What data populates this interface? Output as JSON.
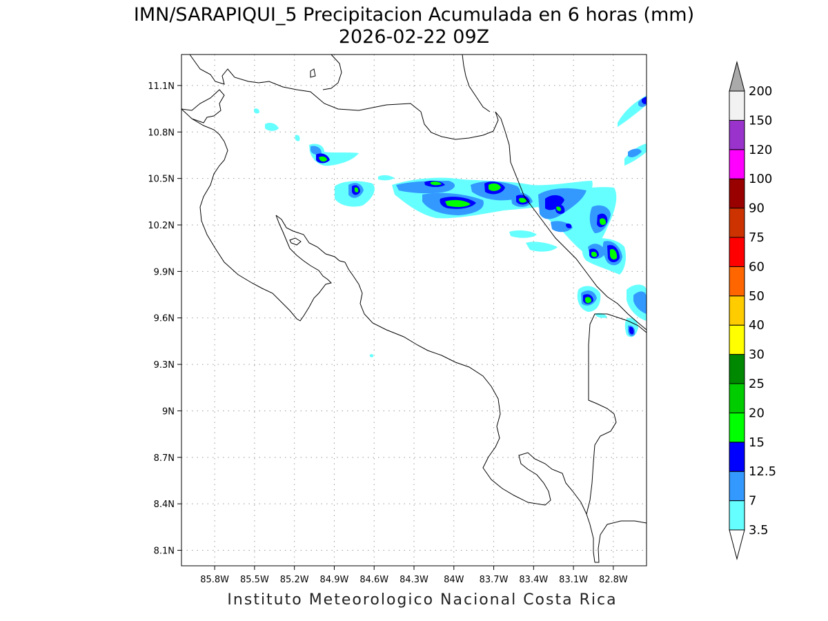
{
  "title": {
    "line1": "IMN/SARAPIQUI_5 Precipitacion Acumulada en 6 horas (mm)",
    "line2": "2026-02-22 09Z"
  },
  "footer": "Instituto Meteorologico Nacional Costa Rica",
  "map": {
    "lon_range": [
      -86.05,
      -82.55
    ],
    "lat_range": [
      8.0,
      11.3
    ],
    "lon_ticks": [
      {
        "value": -85.8,
        "label": "85.8W"
      },
      {
        "value": -85.5,
        "label": "85.5W"
      },
      {
        "value": -85.2,
        "label": "85.2W"
      },
      {
        "value": -84.9,
        "label": "84.9W"
      },
      {
        "value": -84.6,
        "label": "84.6W"
      },
      {
        "value": -84.3,
        "label": "84.3W"
      },
      {
        "value": -84.0,
        "label": "84W"
      },
      {
        "value": -83.7,
        "label": "83.7W"
      },
      {
        "value": -83.4,
        "label": "83.4W"
      },
      {
        "value": -83.1,
        "label": "83.1W"
      },
      {
        "value": -82.8,
        "label": "82.8W"
      }
    ],
    "lat_ticks": [
      {
        "value": 11.1,
        "label": "11.1N"
      },
      {
        "value": 10.8,
        "label": "10.8N"
      },
      {
        "value": 10.5,
        "label": "10.5N"
      },
      {
        "value": 10.2,
        "label": "10.2N"
      },
      {
        "value": 9.9,
        "label": "9.9N"
      },
      {
        "value": 9.6,
        "label": "9.6N"
      },
      {
        "value": 9.3,
        "label": "9.3N"
      },
      {
        "value": 9.0,
        "label": "9N"
      },
      {
        "value": 8.7,
        "label": "8.7N"
      },
      {
        "value": 8.4,
        "label": "8.4N"
      },
      {
        "value": 8.1,
        "label": "8.1N"
      }
    ],
    "grid": true
  },
  "colorbar": {
    "levels": [
      {
        "label": "3.5",
        "color": "#66ffff"
      },
      {
        "label": "7",
        "color": "#3399ff"
      },
      {
        "label": "12.5",
        "color": "#0000ff"
      },
      {
        "label": "15",
        "color": "#00ff00"
      },
      {
        "label": "20",
        "color": "#00cc00"
      },
      {
        "label": "25",
        "color": "#008800"
      },
      {
        "label": "30",
        "color": "#ffff00"
      },
      {
        "label": "40",
        "color": "#ffcc00"
      },
      {
        "label": "50",
        "color": "#ff6600"
      },
      {
        "label": "60",
        "color": "#ff0000"
      },
      {
        "label": "75",
        "color": "#cc3300"
      },
      {
        "label": "90",
        "color": "#990000"
      },
      {
        "label": "100",
        "color": "#ff00ff"
      },
      {
        "label": "120",
        "color": "#9933cc"
      },
      {
        "label": "150",
        "color": "#f2f2f2"
      },
      {
        "label": "200",
        "color": "#aaaaaa"
      }
    ]
  }
}
